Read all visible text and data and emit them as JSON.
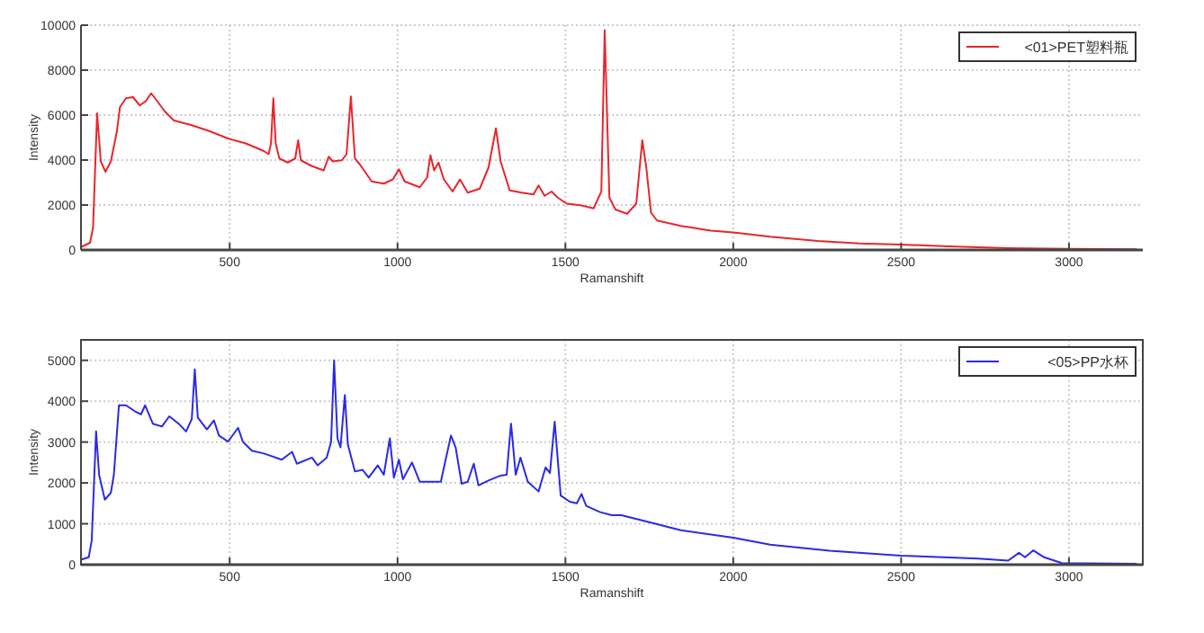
{
  "chart_data": [
    {
      "type": "line",
      "xlabel": "Ramanshift",
      "ylabel": "Intensity",
      "xlim": [
        57,
        3220
      ],
      "ylim": [
        0,
        10000
      ],
      "xticks": [
        500,
        1000,
        1500,
        2000,
        2500,
        3000
      ],
      "yticks": [
        0,
        2000,
        4000,
        6000,
        8000,
        10000
      ],
      "grid": true,
      "legend": "top right",
      "series": [
        {
          "name": "<01>PET塑料瓶",
          "color": "#e8262b",
          "x": [
            57,
            84,
            93,
            105,
            116,
            130,
            146,
            164,
            173,
            191,
            212,
            232,
            250,
            266,
            284,
            307,
            334,
            387,
            441,
            495,
            548,
            602,
            616,
            623,
            630,
            637,
            648,
            673,
            695,
            704,
            712,
            745,
            780,
            795,
            807,
            834,
            848,
            861,
            873,
            888,
            923,
            959,
            986,
            1004,
            1021,
            1066,
            1088,
            1098,
            1109,
            1122,
            1138,
            1164,
            1186,
            1209,
            1245,
            1271,
            1293,
            1307,
            1334,
            1370,
            1405,
            1420,
            1438,
            1459,
            1477,
            1504,
            1548,
            1584,
            1607,
            1617,
            1631,
            1649,
            1684,
            1711,
            1729,
            1741,
            1755,
            1773,
            1844,
            1933,
            2000,
            2110,
            2252,
            2376,
            2500,
            2642,
            2819,
            2997,
            3202
          ],
          "values": [
            130,
            320,
            1000,
            6080,
            3940,
            3480,
            3940,
            5280,
            6350,
            6750,
            6800,
            6430,
            6620,
            6970,
            6620,
            6160,
            5760,
            5550,
            5280,
            4960,
            4740,
            4400,
            4260,
            4740,
            6750,
            4740,
            4070,
            3890,
            4070,
            4880,
            3990,
            3730,
            3540,
            4150,
            3940,
            3990,
            4260,
            6830,
            4070,
            3800,
            3050,
            2950,
            3140,
            3590,
            3050,
            2790,
            3220,
            4210,
            3540,
            3890,
            3140,
            2600,
            3140,
            2550,
            2730,
            3670,
            5410,
            3940,
            2650,
            2550,
            2470,
            2870,
            2410,
            2600,
            2330,
            2060,
            1980,
            1850,
            2600,
            9780,
            2330,
            1800,
            1610,
            2060,
            4880,
            3670,
            1660,
            1310,
            1070,
            860,
            780,
            590,
            400,
            290,
            240,
            160,
            80,
            50,
            30
          ]
        }
      ]
    },
    {
      "type": "line",
      "xlabel": "Ramanshift",
      "ylabel": "Intensity",
      "xlim": [
        57,
        3220
      ],
      "ylim": [
        0,
        5500
      ],
      "xticks": [
        500,
        1000,
        1500,
        2000,
        2500,
        3000
      ],
      "yticks": [
        0,
        1000,
        2000,
        3000,
        4000,
        5000
      ],
      "grid": true,
      "legend": "top right",
      "series": [
        {
          "name": "<05>PP水杯",
          "color": "#2a2ae8",
          "x": [
            57,
            80,
            89,
            102,
            111,
            128,
            146,
            155,
            170,
            191,
            218,
            236,
            248,
            271,
            298,
            320,
            348,
            370,
            387,
            396,
            405,
            432,
            453,
            468,
            495,
            525,
            539,
            566,
            602,
            655,
            686,
            700,
            745,
            762,
            789,
            802,
            811,
            821,
            830,
            843,
            852,
            873,
            896,
            914,
            941,
            959,
            977,
            989,
            1004,
            1016,
            1043,
            1066,
            1102,
            1129,
            1159,
            1173,
            1191,
            1209,
            1227,
            1241,
            1271,
            1307,
            1325,
            1338,
            1352,
            1366,
            1388,
            1420,
            1441,
            1454,
            1468,
            1486,
            1513,
            1534,
            1548,
            1562,
            1602,
            1638,
            1667,
            1755,
            1844,
            2000,
            2110,
            2287,
            2500,
            2730,
            2819,
            2851,
            2869,
            2894,
            2926,
            2979,
            3202
          ],
          "values": [
            120,
            180,
            590,
            3260,
            2200,
            1590,
            1760,
            2200,
            3900,
            3900,
            3750,
            3680,
            3900,
            3450,
            3380,
            3630,
            3450,
            3260,
            3560,
            4780,
            3600,
            3310,
            3530,
            3160,
            3010,
            3350,
            3010,
            2790,
            2720,
            2570,
            2760,
            2470,
            2620,
            2430,
            2620,
            3010,
            5000,
            3090,
            2870,
            4150,
            2940,
            2280,
            2320,
            2130,
            2430,
            2200,
            3090,
            2130,
            2570,
            2090,
            2500,
            2030,
            2030,
            2030,
            3160,
            2870,
            1980,
            2030,
            2470,
            1940,
            2060,
            2180,
            2200,
            3450,
            2200,
            2620,
            2030,
            1790,
            2380,
            2240,
            3500,
            1690,
            1540,
            1500,
            1730,
            1440,
            1290,
            1210,
            1210,
            1030,
            840,
            660,
            490,
            340,
            220,
            150,
            100,
            290,
            180,
            350,
            180,
            40,
            20
          ]
        }
      ]
    }
  ]
}
